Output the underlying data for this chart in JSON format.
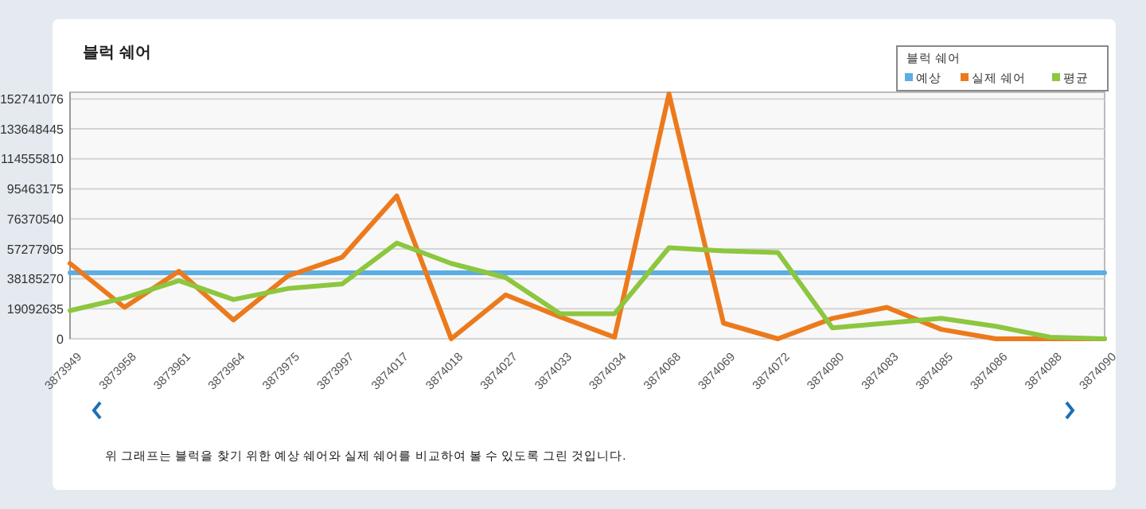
{
  "chart_data": {
    "type": "line",
    "title": "블럭 쉐어",
    "legend_title": "블럭 쉐어",
    "legend": "top right",
    "grid": "y",
    "marker": "none",
    "line_style": "solid",
    "categories": [
      "3873949",
      "3873958",
      "3873961",
      "3873964",
      "3873975",
      "3873997",
      "3874017",
      "3874018",
      "3874027",
      "3874033",
      "3874034",
      "3874068",
      "3874069",
      "3874072",
      "3874080",
      "3874083",
      "3874085",
      "3874086",
      "3874088",
      "3874090"
    ],
    "series": [
      {
        "name": "예상",
        "color": "#5aaee3",
        "values": [
          42000000,
          42000000,
          42000000,
          42000000,
          42000000,
          42000000,
          42000000,
          42000000,
          42000000,
          42000000,
          42000000,
          42000000,
          42000000,
          42000000,
          42000000,
          42000000,
          42000000,
          42000000,
          42000000,
          42000000
        ]
      },
      {
        "name": "실제 쉐어",
        "color": "#ec7a1c",
        "values": [
          48000000,
          20000000,
          43000000,
          12000000,
          40000000,
          52000000,
          91000000,
          0,
          28000000,
          14000000,
          1000000,
          156000000,
          10000000,
          0,
          13000000,
          20000000,
          6000000,
          0,
          0,
          0
        ]
      },
      {
        "name": "평균",
        "color": "#8dc63f",
        "values": [
          18000000,
          26000000,
          37000000,
          25000000,
          32000000,
          35000000,
          61000000,
          48000000,
          39000000,
          16000000,
          16000000,
          58000000,
          56000000,
          55000000,
          7000000,
          10000000,
          13000000,
          8000000,
          1000000,
          0
        ]
      }
    ],
    "ylim": [
      0,
      157000000
    ],
    "yticks": [
      0,
      19092635,
      38185270,
      57277905,
      76370540,
      95463175,
      114555810,
      133648445,
      152741076
    ],
    "annotations": [
      "위 그래프는 블럭을 찾기 위한 예상 쉐어와 실제 쉐어를 비교하여 볼 수 있도록 그린 것입니다."
    ]
  }
}
